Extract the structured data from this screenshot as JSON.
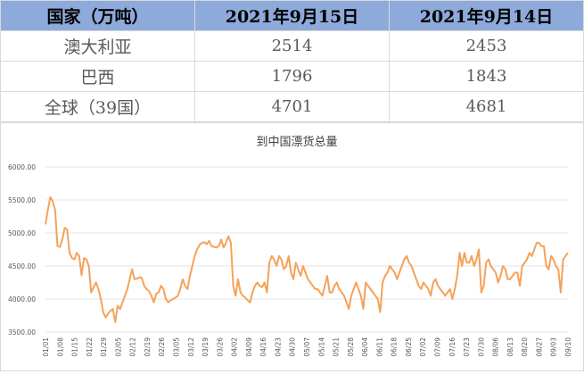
{
  "table": {
    "headers": [
      "国家（万吨）",
      "2021年9月15日",
      "2021年9月14日"
    ],
    "rows": [
      {
        "name": "澳大利亚",
        "v1": "2514",
        "v2": "2453"
      },
      {
        "name": "巴西",
        "v1": "1796",
        "v2": "1843"
      },
      {
        "name": "全球（39国）",
        "v1": "4701",
        "v2": "4681"
      }
    ]
  },
  "colors": {
    "header_bg": "#8eaadb",
    "line": "#f4a259",
    "grid": "#e6e6e6"
  },
  "chart_data": {
    "type": "line",
    "title": "到中国漂货总量",
    "xlabel": "",
    "ylabel": "",
    "ylim": [
      3500,
      6000
    ],
    "yticks": [
      "6000.00",
      "5500.00",
      "5000.00",
      "4500.00",
      "4000.00",
      "3500.00"
    ],
    "xticks": [
      "01/01",
      "01/08",
      "01/15",
      "01/22",
      "01/29",
      "02/05",
      "02/12",
      "02/19",
      "02/26",
      "03/05",
      "03/12",
      "03/19",
      "03/26",
      "04/02",
      "04/09",
      "04/16",
      "04/23",
      "04/30",
      "05/07",
      "05/14",
      "05/21",
      "05/28",
      "06/04",
      "06/11",
      "06/18",
      "06/25",
      "07/02",
      "07/09",
      "07/16",
      "07/23",
      "07/30",
      "08/06",
      "08/13",
      "08/20",
      "08/27",
      "09/03",
      "09/10"
    ],
    "grid": true,
    "series": [
      {
        "values": [
          5130,
          5350,
          5540,
          5480,
          5350,
          4800,
          4790,
          4900,
          5080,
          5050,
          4700,
          4620,
          4600,
          4700,
          4650,
          4360,
          4620,
          4600,
          4500,
          4100,
          4180,
          4250,
          4150,
          4000,
          3800,
          3720,
          3780,
          3820,
          3850,
          3650,
          3900,
          3850,
          3950,
          4050,
          4150,
          4300,
          4450,
          4300,
          4310,
          4330,
          4320,
          4200,
          4150,
          4120,
          4050,
          3950,
          4080,
          4100,
          4200,
          4150,
          4000,
          3950,
          3980,
          4000,
          4020,
          4050,
          4150,
          4300,
          4200,
          4150,
          4350,
          4500,
          4650,
          4750,
          4820,
          4850,
          4860,
          4830,
          4880,
          4800,
          4790,
          4780,
          4800,
          4900,
          4780,
          4850,
          4950,
          4850,
          4200,
          4050,
          4300,
          4100,
          4050,
          4020,
          3980,
          3950,
          4100,
          4200,
          4250,
          4200,
          4180,
          4250,
          4100,
          4550,
          4650,
          4600,
          4500,
          4650,
          4600,
          4450,
          4500,
          4650,
          4400,
          4300,
          4550,
          4450,
          4350,
          4500,
          4400,
          4300,
          4250,
          4200,
          4150,
          4150,
          4100,
          4050,
          4200,
          4350,
          4100,
          4100,
          4200,
          4250,
          4150,
          4100,
          4050,
          3950,
          3850,
          4050,
          4150,
          4250,
          4150,
          4050,
          3850,
          4250,
          4200,
          4150,
          4100,
          4050,
          4000,
          3800,
          4250,
          4350,
          4400,
          4500,
          4450,
          4400,
          4300,
          4400,
          4500,
          4600,
          4650,
          4550,
          4500,
          4400,
          4300,
          4200,
          4150,
          4250,
          4200,
          4150,
          4050,
          4250,
          4300,
          4200,
          4150,
          4100,
          4050,
          4100,
          4150,
          4000,
          4150,
          4350,
          4700,
          4500,
          4700,
          4550,
          4550,
          4650,
          4500,
          4600,
          4750,
          4100,
          4200,
          4550,
          4600,
          4500,
          4450,
          4400,
          4250,
          4350,
          4500,
          4450,
          4300,
          4300,
          4350,
          4400,
          4400,
          4200,
          4500,
          4550,
          4600,
          4700,
          4650,
          4750,
          4850,
          4850,
          4800,
          4800,
          4500,
          4450,
          4650,
          4600,
          4500,
          4450,
          4100,
          4600,
          4650,
          4700
        ]
      }
    ]
  }
}
